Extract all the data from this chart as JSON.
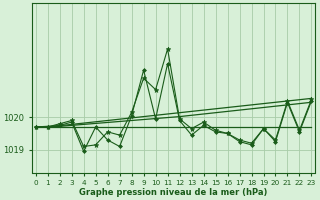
{
  "background_color": "#d8f0d8",
  "grid_color": "#a8cca8",
  "line_color": "#1a5c1a",
  "marker_color": "#1a5c1a",
  "x_labels": [
    "0",
    "1",
    "2",
    "3",
    "4",
    "5",
    "6",
    "7",
    "8",
    "9",
    "10",
    "11",
    "12",
    "13",
    "14",
    "15",
    "16",
    "17",
    "18",
    "19",
    "20",
    "21",
    "22",
    "23"
  ],
  "xlabel": "Graphe pression niveau de la mer (hPa)",
  "yticks": [
    1019,
    1020
  ],
  "ylim": [
    1018.3,
    1023.5
  ],
  "xlim": [
    -0.3,
    23.3
  ],
  "series_main1": [
    1019.7,
    1019.7,
    1019.8,
    1019.9,
    1019.1,
    1019.15,
    1019.55,
    1019.45,
    1020.15,
    1021.2,
    1020.85,
    1022.1,
    1019.95,
    1019.65,
    1019.85,
    1019.6,
    1019.5,
    1019.3,
    1019.2,
    1019.65,
    1019.3,
    1020.5,
    1019.6,
    1020.55
  ],
  "series_main2": [
    1019.7,
    1019.7,
    1019.75,
    1019.85,
    1018.95,
    1019.7,
    1019.3,
    1019.1,
    1020.05,
    1021.45,
    1019.95,
    1021.65,
    1019.9,
    1019.45,
    1019.75,
    1019.55,
    1019.5,
    1019.25,
    1019.15,
    1019.65,
    1019.25,
    1020.45,
    1019.55,
    1020.5
  ],
  "series_trend1": [
    1019.7,
    1019.72,
    1019.74,
    1019.78,
    1019.82,
    1019.86,
    1019.9,
    1019.94,
    1019.98,
    1020.02,
    1020.06,
    1020.1,
    1020.14,
    1020.18,
    1020.22,
    1020.26,
    1020.3,
    1020.34,
    1020.38,
    1020.42,
    1020.46,
    1020.5,
    1020.54,
    1020.58
  ],
  "series_trend2": [
    1019.7,
    1019.71,
    1019.72,
    1019.75,
    1019.78,
    1019.81,
    1019.84,
    1019.87,
    1019.9,
    1019.93,
    1019.96,
    1019.99,
    1020.02,
    1020.06,
    1020.1,
    1020.14,
    1020.18,
    1020.22,
    1020.26,
    1020.3,
    1020.34,
    1020.38,
    1020.42,
    1020.46
  ],
  "series_flat": [
    1019.7,
    1019.7,
    1019.7,
    1019.7,
    1019.7,
    1019.7,
    1019.7,
    1019.7,
    1019.7,
    1019.7,
    1019.7,
    1019.7,
    1019.7,
    1019.7,
    1019.7,
    1019.7,
    1019.7,
    1019.7,
    1019.7,
    1019.7,
    1019.7,
    1019.7,
    1019.7,
    1019.7
  ]
}
